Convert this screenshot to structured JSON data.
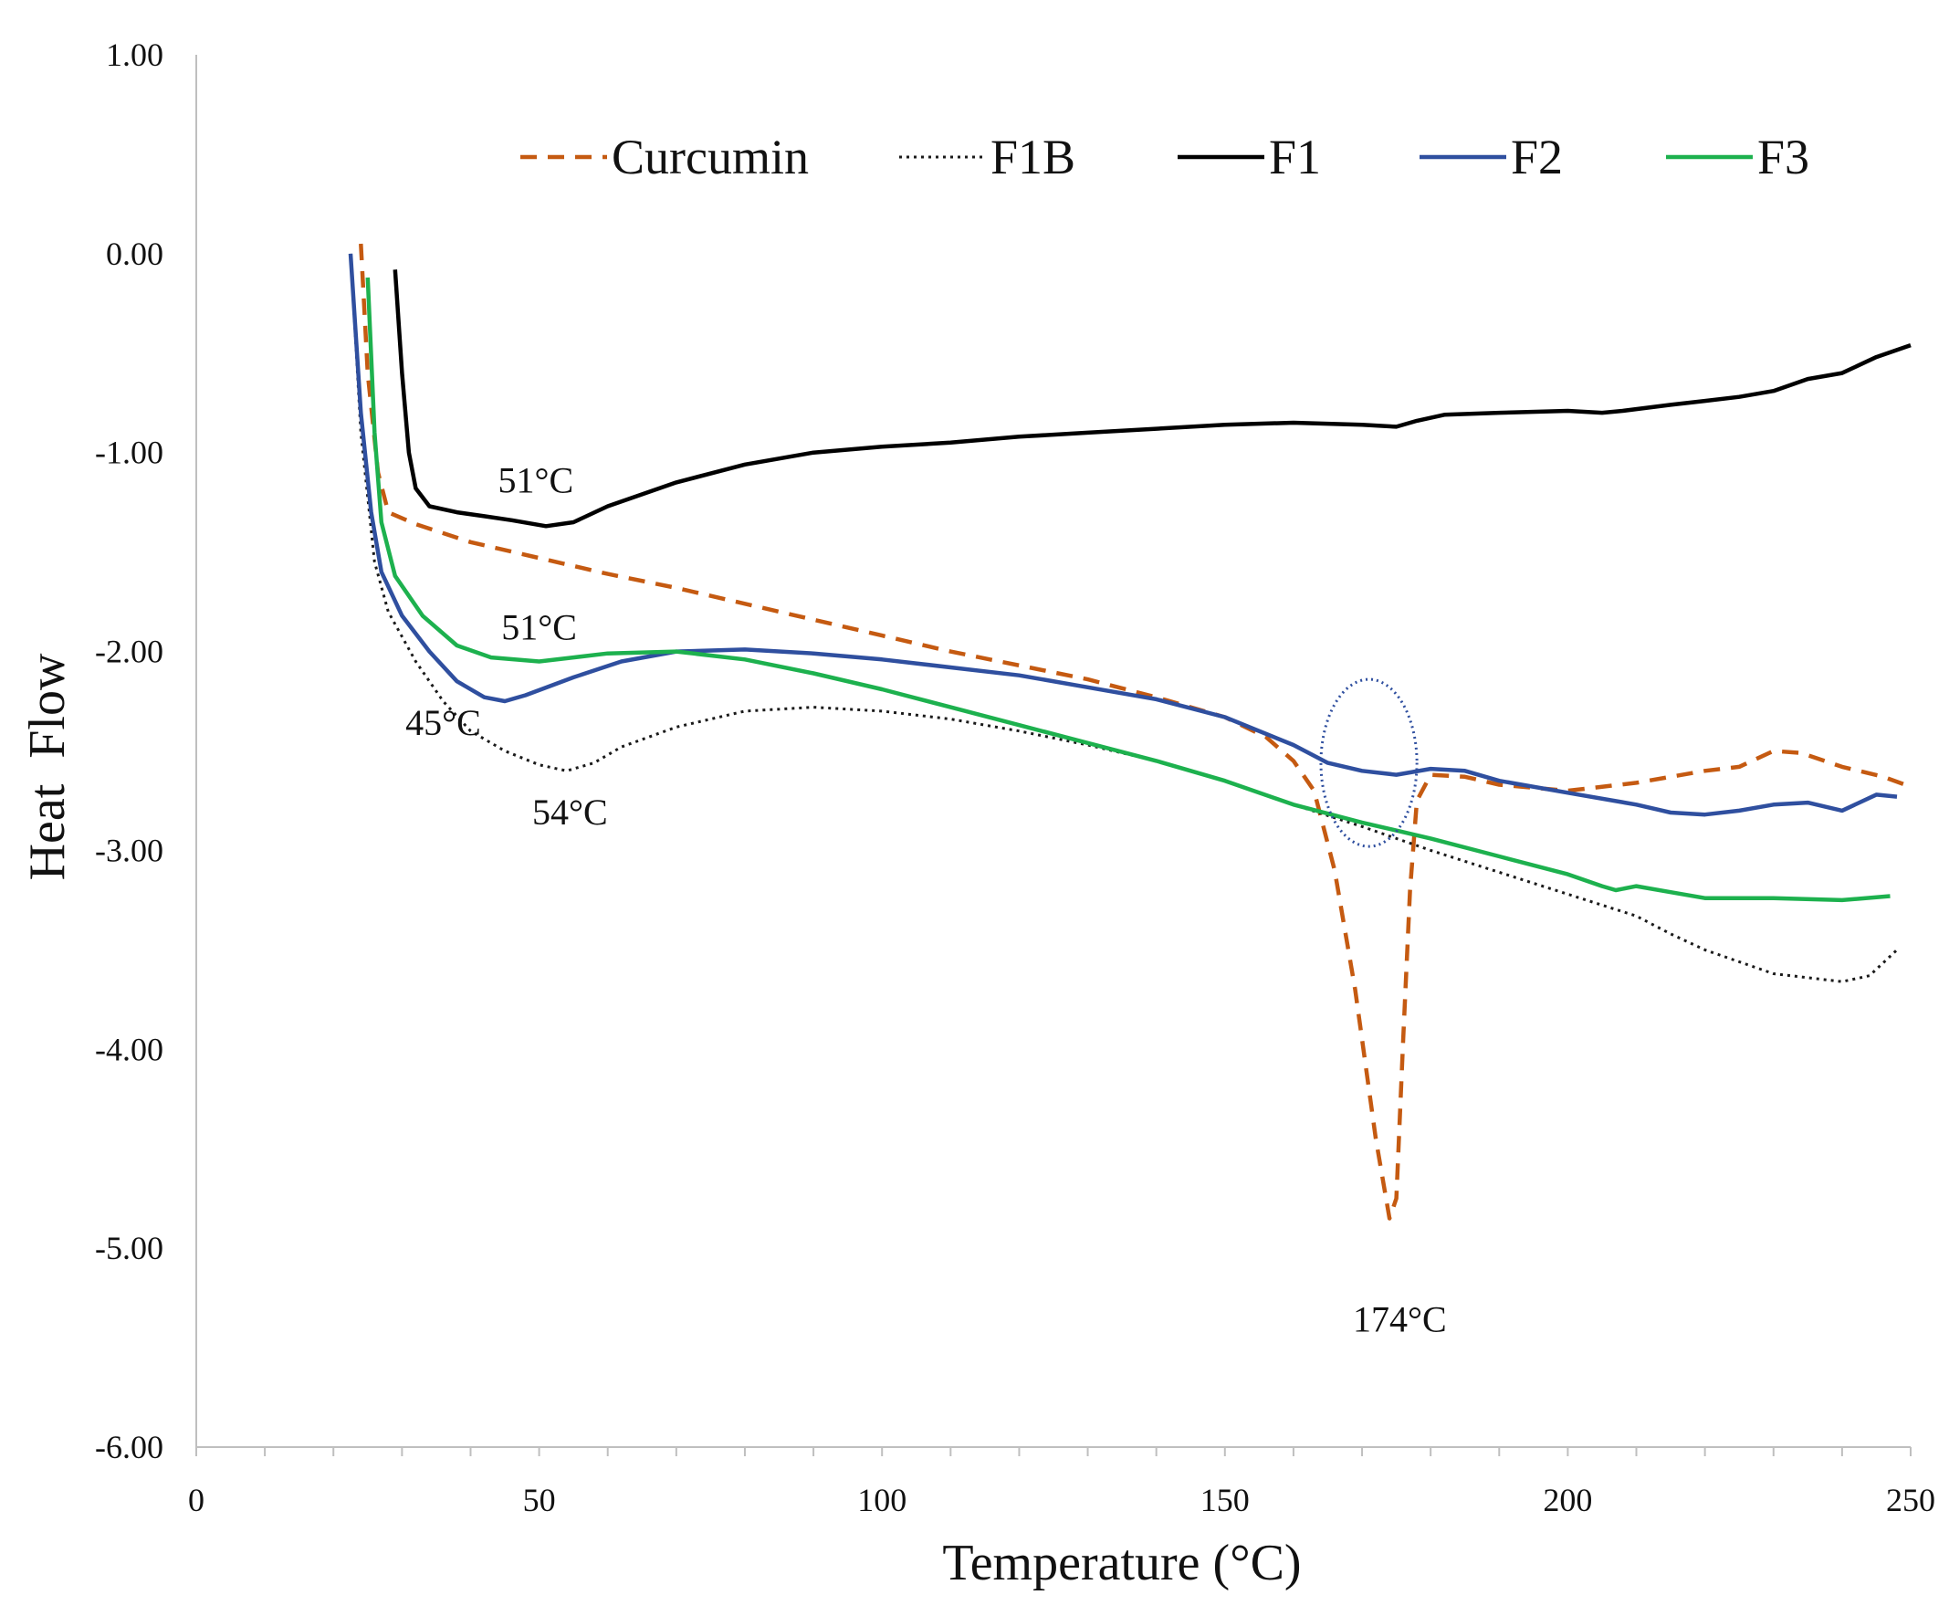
{
  "chart_data": {
    "type": "line",
    "title": "",
    "xlabel": "Temperature (°C)",
    "ylabel": "Heat  Flow",
    "xlim": [
      0,
      250
    ],
    "ylim": [
      -6,
      1
    ],
    "x_major_ticks": [
      0,
      50,
      100,
      150,
      200,
      250
    ],
    "x_tick_labels": [
      "0",
      "50",
      "100",
      "150",
      "200",
      "250"
    ],
    "y_major_ticks": [
      1,
      0,
      -1,
      -2,
      -3,
      -4,
      -5,
      -6
    ],
    "y_tick_labels": [
      "1.00",
      "0.00",
      "-1.00",
      "-2.00",
      "-3.00",
      "-4.00",
      "-5.00",
      "-6.00"
    ],
    "grid": false,
    "legend_position": "top",
    "series": [
      {
        "name": "Curcumin",
        "color": "#c55a11",
        "dash": "dashed",
        "points": [
          [
            24,
            0.05
          ],
          [
            25,
            -0.6
          ],
          [
            26.5,
            -1.1
          ],
          [
            28,
            -1.3
          ],
          [
            32,
            -1.36
          ],
          [
            40,
            -1.45
          ],
          [
            50,
            -1.53
          ],
          [
            60,
            -1.61
          ],
          [
            70,
            -1.68
          ],
          [
            80,
            -1.76
          ],
          [
            90,
            -1.84
          ],
          [
            100,
            -1.92
          ],
          [
            110,
            -2.0
          ],
          [
            120,
            -2.07
          ],
          [
            130,
            -2.14
          ],
          [
            140,
            -2.23
          ],
          [
            150,
            -2.33
          ],
          [
            156,
            -2.43
          ],
          [
            160,
            -2.55
          ],
          [
            163,
            -2.7
          ],
          [
            166,
            -3.1
          ],
          [
            169,
            -3.7
          ],
          [
            172,
            -4.45
          ],
          [
            174,
            -4.85
          ],
          [
            175,
            -4.75
          ],
          [
            176,
            -3.95
          ],
          [
            177,
            -3.2
          ],
          [
            178,
            -2.75
          ],
          [
            180,
            -2.62
          ],
          [
            185,
            -2.63
          ],
          [
            190,
            -2.67
          ],
          [
            200,
            -2.7
          ],
          [
            210,
            -2.66
          ],
          [
            220,
            -2.6
          ],
          [
            225,
            -2.58
          ],
          [
            230,
            -2.5
          ],
          [
            234,
            -2.51
          ],
          [
            240,
            -2.58
          ],
          [
            246,
            -2.63
          ],
          [
            250,
            -2.68
          ]
        ]
      },
      {
        "name": "F1B",
        "color": "#1a1a1a",
        "dash": "dotted",
        "points": [
          [
            22.5,
            0.0
          ],
          [
            24,
            -0.9
          ],
          [
            26,
            -1.55
          ],
          [
            28,
            -1.8
          ],
          [
            32,
            -2.05
          ],
          [
            36,
            -2.25
          ],
          [
            40,
            -2.4
          ],
          [
            45,
            -2.5
          ],
          [
            50,
            -2.57
          ],
          [
            54,
            -2.6
          ],
          [
            58,
            -2.56
          ],
          [
            62,
            -2.48
          ],
          [
            70,
            -2.38
          ],
          [
            80,
            -2.3
          ],
          [
            90,
            -2.28
          ],
          [
            100,
            -2.3
          ],
          [
            110,
            -2.34
          ],
          [
            120,
            -2.4
          ],
          [
            130,
            -2.47
          ],
          [
            140,
            -2.55
          ],
          [
            150,
            -2.65
          ],
          [
            160,
            -2.77
          ],
          [
            170,
            -2.88
          ],
          [
            180,
            -3.0
          ],
          [
            190,
            -3.11
          ],
          [
            200,
            -3.22
          ],
          [
            210,
            -3.33
          ],
          [
            215,
            -3.42
          ],
          [
            220,
            -3.5
          ],
          [
            230,
            -3.62
          ],
          [
            240,
            -3.66
          ],
          [
            244,
            -3.63
          ],
          [
            248,
            -3.5
          ]
        ]
      },
      {
        "name": "F1",
        "color": "#000000",
        "dash": "solid",
        "points": [
          [
            29,
            -0.08
          ],
          [
            30,
            -0.6
          ],
          [
            31,
            -1.0
          ],
          [
            32,
            -1.18
          ],
          [
            34,
            -1.27
          ],
          [
            38,
            -1.3
          ],
          [
            42,
            -1.32
          ],
          [
            46,
            -1.34
          ],
          [
            51,
            -1.37
          ],
          [
            55,
            -1.35
          ],
          [
            60,
            -1.27
          ],
          [
            70,
            -1.15
          ],
          [
            80,
            -1.06
          ],
          [
            90,
            -1.0
          ],
          [
            100,
            -0.97
          ],
          [
            110,
            -0.95
          ],
          [
            120,
            -0.92
          ],
          [
            130,
            -0.9
          ],
          [
            140,
            -0.88
          ],
          [
            150,
            -0.86
          ],
          [
            160,
            -0.85
          ],
          [
            170,
            -0.86
          ],
          [
            175,
            -0.87
          ],
          [
            178,
            -0.84
          ],
          [
            182,
            -0.81
          ],
          [
            190,
            -0.8
          ],
          [
            200,
            -0.79
          ],
          [
            205,
            -0.8
          ],
          [
            208,
            -0.79
          ],
          [
            215,
            -0.76
          ],
          [
            220,
            -0.74
          ],
          [
            225,
            -0.72
          ],
          [
            230,
            -0.69
          ],
          [
            235,
            -0.63
          ],
          [
            240,
            -0.6
          ],
          [
            245,
            -0.52
          ],
          [
            250,
            -0.46
          ]
        ]
      },
      {
        "name": "F2",
        "color": "#2f4f9f",
        "dash": "solid",
        "points": [
          [
            22.5,
            0.0
          ],
          [
            24,
            -0.8
          ],
          [
            25.5,
            -1.3
          ],
          [
            27,
            -1.6
          ],
          [
            30,
            -1.82
          ],
          [
            34,
            -2.0
          ],
          [
            38,
            -2.15
          ],
          [
            42,
            -2.23
          ],
          [
            45,
            -2.25
          ],
          [
            48,
            -2.22
          ],
          [
            55,
            -2.13
          ],
          [
            62,
            -2.05
          ],
          [
            70,
            -2.0
          ],
          [
            80,
            -1.99
          ],
          [
            90,
            -2.01
          ],
          [
            100,
            -2.04
          ],
          [
            110,
            -2.08
          ],
          [
            120,
            -2.12
          ],
          [
            130,
            -2.18
          ],
          [
            140,
            -2.24
          ],
          [
            150,
            -2.33
          ],
          [
            160,
            -2.47
          ],
          [
            165,
            -2.56
          ],
          [
            170,
            -2.6
          ],
          [
            175,
            -2.62
          ],
          [
            180,
            -2.59
          ],
          [
            185,
            -2.6
          ],
          [
            190,
            -2.65
          ],
          [
            200,
            -2.71
          ],
          [
            210,
            -2.77
          ],
          [
            215,
            -2.81
          ],
          [
            220,
            -2.82
          ],
          [
            225,
            -2.8
          ],
          [
            230,
            -2.77
          ],
          [
            235,
            -2.76
          ],
          [
            240,
            -2.8
          ],
          [
            245,
            -2.72
          ],
          [
            248,
            -2.73
          ]
        ]
      },
      {
        "name": "F3",
        "color": "#1db14e",
        "dash": "solid",
        "points": [
          [
            25,
            -0.12
          ],
          [
            26,
            -0.9
          ],
          [
            27,
            -1.35
          ],
          [
            29,
            -1.62
          ],
          [
            33,
            -1.82
          ],
          [
            38,
            -1.97
          ],
          [
            43,
            -2.03
          ],
          [
            50,
            -2.05
          ],
          [
            55,
            -2.03
          ],
          [
            60,
            -2.01
          ],
          [
            70,
            -2.0
          ],
          [
            80,
            -2.04
          ],
          [
            90,
            -2.11
          ],
          [
            100,
            -2.19
          ],
          [
            110,
            -2.28
          ],
          [
            120,
            -2.37
          ],
          [
            130,
            -2.46
          ],
          [
            140,
            -2.55
          ],
          [
            150,
            -2.65
          ],
          [
            160,
            -2.77
          ],
          [
            170,
            -2.86
          ],
          [
            180,
            -2.94
          ],
          [
            190,
            -3.03
          ],
          [
            200,
            -3.12
          ],
          [
            205,
            -3.18
          ],
          [
            207,
            -3.2
          ],
          [
            210,
            -3.18
          ],
          [
            215,
            -3.21
          ],
          [
            220,
            -3.24
          ],
          [
            230,
            -3.24
          ],
          [
            240,
            -3.25
          ],
          [
            247,
            -3.23
          ]
        ]
      }
    ],
    "annotations": [
      {
        "text": "51°C",
        "x": 49.5,
        "y": -1.2
      },
      {
        "text": "51°C",
        "x": 50,
        "y": -1.94
      },
      {
        "text": "45°C",
        "x": 36,
        "y": -2.42
      },
      {
        "text": "54°C",
        "x": 54.5,
        "y": -2.87
      },
      {
        "text": "174°C",
        "x": 175.5,
        "y": -5.42
      }
    ],
    "highlight_circle": {
      "center_x": 171,
      "center_y": -2.56,
      "radius_x": 7,
      "radius_y": 0.42,
      "color": "#2f4f9f"
    }
  }
}
